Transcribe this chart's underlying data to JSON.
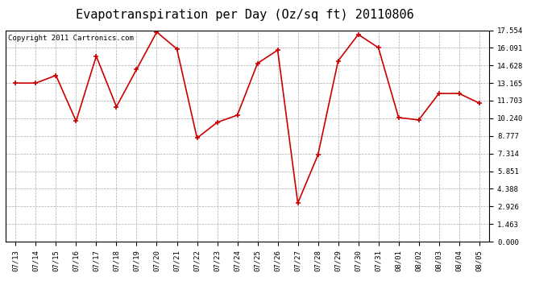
{
  "title": "Evapotranspiration per Day (Oz/sq ft) 20110806",
  "copyright": "Copyright 2011 Cartronics.com",
  "dates": [
    "07/13",
    "07/14",
    "07/15",
    "07/16",
    "07/17",
    "07/18",
    "07/19",
    "07/20",
    "07/21",
    "07/22",
    "07/23",
    "07/24",
    "07/25",
    "07/26",
    "07/27",
    "07/28",
    "07/29",
    "07/30",
    "07/31",
    "08/01",
    "08/02",
    "08/03",
    "08/04",
    "08/05"
  ],
  "values": [
    13.165,
    13.165,
    13.8,
    10.0,
    15.4,
    11.2,
    14.3,
    17.4,
    16.0,
    8.6,
    9.9,
    10.5,
    14.8,
    15.9,
    3.2,
    7.2,
    15.0,
    17.2,
    16.1,
    10.3,
    10.1,
    12.3,
    12.3,
    11.5
  ],
  "yticks": [
    0.0,
    1.463,
    2.926,
    4.388,
    5.851,
    7.314,
    8.777,
    10.24,
    11.703,
    13.165,
    14.628,
    16.091,
    17.554
  ],
  "ylim": [
    0.0,
    17.554
  ],
  "line_color": "#cc0000",
  "marker_color": "#cc0000",
  "bg_color": "#ffffff",
  "grid_color": "#aaaaaa",
  "title_fontsize": 11,
  "copyright_fontsize": 6.5
}
